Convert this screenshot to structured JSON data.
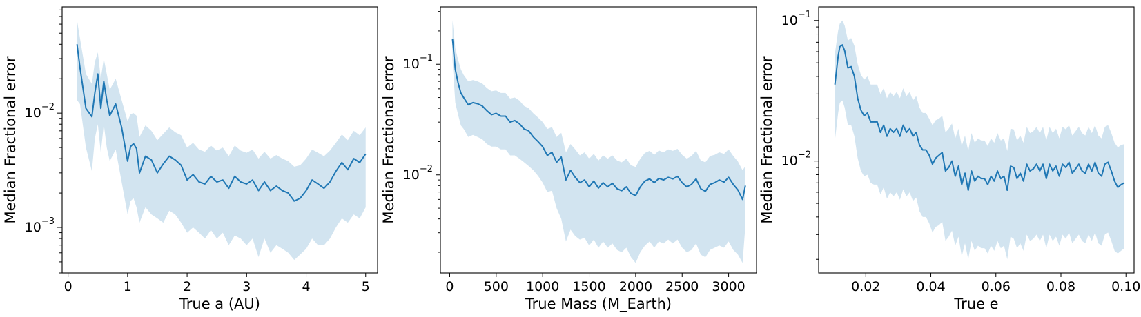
{
  "chart_data": [
    {
      "type": "line",
      "xlabel": "True a  (AU)",
      "ylabel": "Median Fractional error",
      "yscale": "log",
      "xlim": [
        -0.1,
        5.2
      ],
      "ylim": [
        0.0004,
        0.085
      ],
      "xticks": [
        0,
        1,
        2,
        3,
        4,
        5
      ],
      "xtick_labels": [
        "0",
        "1",
        "2",
        "3",
        "4",
        "5"
      ],
      "yticks": [
        0.001,
        0.01
      ],
      "ytick_labels": [
        "10^-3",
        "10^-2"
      ],
      "series": [
        {
          "x": [
            0.15,
            0.2,
            0.3,
            0.4,
            0.45,
            0.5,
            0.55,
            0.6,
            0.65,
            0.7,
            0.8,
            0.9,
            1.0,
            1.05,
            1.1,
            1.15,
            1.2,
            1.3,
            1.4,
            1.5,
            1.6,
            1.7,
            1.8,
            1.9,
            2.0,
            2.1,
            2.2,
            2.3,
            2.4,
            2.5,
            2.6,
            2.7,
            2.8,
            2.9,
            3.0,
            3.1,
            3.2,
            3.3,
            3.4,
            3.5,
            3.6,
            3.7,
            3.8,
            3.9,
            4.0,
            4.1,
            4.2,
            4.3,
            4.4,
            4.5,
            4.6,
            4.7,
            4.8,
            4.9,
            5.0
          ],
          "median": [
            0.04,
            0.025,
            0.011,
            0.0093,
            0.015,
            0.022,
            0.011,
            0.019,
            0.013,
            0.0095,
            0.012,
            0.0075,
            0.0038,
            0.0051,
            0.0054,
            0.0049,
            0.003,
            0.0042,
            0.0039,
            0.003,
            0.0036,
            0.0042,
            0.0039,
            0.0035,
            0.0026,
            0.0029,
            0.0025,
            0.0024,
            0.0028,
            0.0025,
            0.0026,
            0.0022,
            0.0028,
            0.0025,
            0.0024,
            0.0026,
            0.0021,
            0.0025,
            0.0021,
            0.0023,
            0.0021,
            0.002,
            0.0017,
            0.0018,
            0.0021,
            0.0026,
            0.0024,
            0.0022,
            0.0025,
            0.0031,
            0.0037,
            0.0032,
            0.004,
            0.0037,
            0.0044
          ],
          "lower": [
            0.013,
            0.012,
            0.005,
            0.0031,
            0.006,
            0.008,
            0.0045,
            0.008,
            0.005,
            0.0038,
            0.0048,
            0.0025,
            0.0013,
            0.0017,
            0.0018,
            0.0015,
            0.0011,
            0.0015,
            0.0013,
            0.0012,
            0.0011,
            0.0014,
            0.0013,
            0.0011,
            0.0009,
            0.001,
            0.0009,
            0.0008,
            0.00095,
            0.0008,
            0.0009,
            0.0007,
            0.00085,
            0.0008,
            0.0007,
            0.0008,
            0.00055,
            0.0008,
            0.0006,
            0.0007,
            0.00065,
            0.0006,
            0.00052,
            0.00058,
            0.00065,
            0.0008,
            0.0007,
            0.0007,
            0.0008,
            0.001,
            0.0012,
            0.0011,
            0.0013,
            0.0012,
            0.0015
          ],
          "upper": [
            0.065,
            0.045,
            0.022,
            0.018,
            0.028,
            0.034,
            0.02,
            0.03,
            0.022,
            0.016,
            0.02,
            0.013,
            0.0085,
            0.0098,
            0.01,
            0.0095,
            0.0062,
            0.0078,
            0.007,
            0.0058,
            0.0066,
            0.0075,
            0.0068,
            0.0064,
            0.005,
            0.0055,
            0.0048,
            0.0046,
            0.0052,
            0.0047,
            0.005,
            0.0042,
            0.0052,
            0.0047,
            0.0045,
            0.0048,
            0.004,
            0.0046,
            0.004,
            0.0043,
            0.004,
            0.0038,
            0.0034,
            0.0035,
            0.004,
            0.0048,
            0.0045,
            0.0042,
            0.0047,
            0.0055,
            0.0065,
            0.0058,
            0.007,
            0.0064,
            0.0075
          ]
        }
      ]
    },
    {
      "type": "line",
      "xlabel": "True Mass  (M_Earth)",
      "ylabel": "Median Fractional error",
      "yscale": "log",
      "xlim": [
        -100,
        3300
      ],
      "ylim": [
        0.0013,
        0.33
      ],
      "xticks": [
        0,
        500,
        1000,
        1500,
        2000,
        2500,
        3000
      ],
      "xtick_labels": [
        "0",
        "500",
        "1000",
        "1500",
        "2000",
        "2500",
        "3000"
      ],
      "yticks": [
        0.01,
        0.1
      ],
      "ytick_labels": [
        "10^-2",
        "10^-1"
      ],
      "series": [
        {
          "x": [
            30,
            60,
            90,
            120,
            150,
            200,
            250,
            300,
            350,
            400,
            450,
            500,
            550,
            600,
            650,
            700,
            750,
            800,
            850,
            900,
            950,
            1000,
            1050,
            1100,
            1150,
            1200,
            1250,
            1300,
            1350,
            1400,
            1450,
            1500,
            1550,
            1600,
            1650,
            1700,
            1750,
            1800,
            1850,
            1900,
            1950,
            2000,
            2050,
            2100,
            2150,
            2200,
            2250,
            2300,
            2350,
            2400,
            2450,
            2500,
            2550,
            2600,
            2650,
            2700,
            2750,
            2800,
            2850,
            2900,
            2950,
            3000,
            3050,
            3100,
            3150,
            3180
          ],
          "median": [
            0.17,
            0.09,
            0.068,
            0.055,
            0.05,
            0.043,
            0.045,
            0.044,
            0.042,
            0.038,
            0.035,
            0.036,
            0.034,
            0.034,
            0.03,
            0.031,
            0.029,
            0.026,
            0.025,
            0.022,
            0.02,
            0.018,
            0.015,
            0.016,
            0.013,
            0.0145,
            0.009,
            0.011,
            0.0095,
            0.0085,
            0.009,
            0.0078,
            0.0088,
            0.0076,
            0.0085,
            0.0078,
            0.0084,
            0.0075,
            0.0072,
            0.0078,
            0.0068,
            0.0065,
            0.0078,
            0.0088,
            0.0092,
            0.0085,
            0.0093,
            0.009,
            0.0095,
            0.0092,
            0.0097,
            0.0085,
            0.0078,
            0.0082,
            0.0092,
            0.0075,
            0.0071,
            0.0082,
            0.0085,
            0.009,
            0.0086,
            0.0095,
            0.0082,
            0.0073,
            0.006,
            0.008
          ],
          "lower": [
            0.11,
            0.045,
            0.035,
            0.028,
            0.026,
            0.022,
            0.023,
            0.022,
            0.021,
            0.019,
            0.018,
            0.018,
            0.017,
            0.017,
            0.015,
            0.015,
            0.014,
            0.013,
            0.012,
            0.011,
            0.0098,
            0.0085,
            0.007,
            0.0072,
            0.005,
            0.004,
            0.0025,
            0.0032,
            0.0028,
            0.0026,
            0.0027,
            0.0023,
            0.0026,
            0.0022,
            0.0025,
            0.0022,
            0.0024,
            0.0021,
            0.002,
            0.0022,
            0.0018,
            0.0016,
            0.002,
            0.0023,
            0.0025,
            0.0022,
            0.0025,
            0.0024,
            0.0026,
            0.0024,
            0.0026,
            0.0022,
            0.002,
            0.0021,
            0.0024,
            0.0019,
            0.0018,
            0.0021,
            0.0022,
            0.0023,
            0.0022,
            0.0025,
            0.0021,
            0.0019,
            0.0016,
            0.0035
          ],
          "upper": [
            0.25,
            0.14,
            0.11,
            0.09,
            0.08,
            0.07,
            0.072,
            0.07,
            0.067,
            0.061,
            0.057,
            0.058,
            0.055,
            0.055,
            0.049,
            0.05,
            0.047,
            0.042,
            0.04,
            0.036,
            0.033,
            0.03,
            0.026,
            0.027,
            0.022,
            0.024,
            0.016,
            0.019,
            0.017,
            0.015,
            0.016,
            0.014,
            0.0155,
            0.0135,
            0.015,
            0.014,
            0.015,
            0.0135,
            0.013,
            0.014,
            0.0122,
            0.0118,
            0.014,
            0.0158,
            0.0165,
            0.0152,
            0.0166,
            0.016,
            0.017,
            0.0165,
            0.0172,
            0.0152,
            0.014,
            0.0148,
            0.0165,
            0.0135,
            0.013,
            0.0148,
            0.0152,
            0.016,
            0.0155,
            0.017,
            0.0148,
            0.0132,
            0.011,
            0.012
          ]
        }
      ]
    },
    {
      "type": "line",
      "xlabel": "True e",
      "ylabel": "Median Fractional error",
      "yscale": "log",
      "xlim": [
        0.0055,
        0.1025
      ],
      "ylim": [
        0.0016,
        0.125
      ],
      "xticks": [
        0.02,
        0.04,
        0.06,
        0.08,
        0.1
      ],
      "xtick_labels": [
        "0.02",
        "0.04",
        "0.06",
        "0.08",
        "0.10"
      ],
      "yticks": [
        0.01,
        0.1
      ],
      "ytick_labels": [
        "10^-2",
        "10^-1"
      ],
      "series": [
        {
          "x": [
            0.0105,
            0.0115,
            0.012,
            0.0128,
            0.0135,
            0.0145,
            0.0155,
            0.0165,
            0.0175,
            0.0185,
            0.0195,
            0.0205,
            0.0215,
            0.0225,
            0.0235,
            0.0245,
            0.0255,
            0.0265,
            0.0275,
            0.0285,
            0.0295,
            0.0305,
            0.0315,
            0.0325,
            0.0335,
            0.0345,
            0.0355,
            0.0365,
            0.0375,
            0.0385,
            0.0395,
            0.0405,
            0.0415,
            0.0425,
            0.0435,
            0.0445,
            0.0455,
            0.0465,
            0.0475,
            0.0485,
            0.0495,
            0.0505,
            0.0515,
            0.0525,
            0.0535,
            0.0545,
            0.0555,
            0.0565,
            0.0575,
            0.0585,
            0.0595,
            0.0605,
            0.0615,
            0.0625,
            0.0635,
            0.0645,
            0.0655,
            0.0665,
            0.0675,
            0.0685,
            0.0695,
            0.0705,
            0.0715,
            0.0725,
            0.0735,
            0.0745,
            0.0755,
            0.0765,
            0.0775,
            0.0785,
            0.0795,
            0.0805,
            0.0815,
            0.0825,
            0.0835,
            0.0845,
            0.0855,
            0.0865,
            0.0875,
            0.0885,
            0.0895,
            0.0905,
            0.0915,
            0.0925,
            0.0935,
            0.0945,
            0.0955,
            0.0965,
            0.0975,
            0.0985,
            0.0995
          ],
          "median": [
            0.035,
            0.056,
            0.065,
            0.067,
            0.061,
            0.046,
            0.047,
            0.04,
            0.028,
            0.023,
            0.021,
            0.022,
            0.019,
            0.019,
            0.019,
            0.016,
            0.018,
            0.015,
            0.017,
            0.016,
            0.017,
            0.015,
            0.018,
            0.016,
            0.017,
            0.015,
            0.016,
            0.013,
            0.012,
            0.012,
            0.011,
            0.0095,
            0.0105,
            0.011,
            0.0115,
            0.0085,
            0.009,
            0.01,
            0.0078,
            0.0092,
            0.0068,
            0.0082,
            0.0062,
            0.0085,
            0.0072,
            0.0078,
            0.0075,
            0.0075,
            0.0068,
            0.0078,
            0.0072,
            0.0085,
            0.0075,
            0.0078,
            0.0062,
            0.0092,
            0.009,
            0.0075,
            0.0082,
            0.0072,
            0.0095,
            0.0085,
            0.0088,
            0.0095,
            0.0085,
            0.0095,
            0.0075,
            0.0095,
            0.0085,
            0.0092,
            0.0078,
            0.0095,
            0.009,
            0.0098,
            0.0082,
            0.0088,
            0.0095,
            0.0085,
            0.0082,
            0.0095,
            0.0085,
            0.0098,
            0.0082,
            0.0078,
            0.0095,
            0.0098,
            0.0085,
            0.0072,
            0.0065,
            0.0068,
            0.007
          ],
          "lower": [
            0.014,
            0.022,
            0.026,
            0.027,
            0.024,
            0.018,
            0.018,
            0.015,
            0.0105,
            0.0085,
            0.0078,
            0.008,
            0.007,
            0.0068,
            0.0068,
            0.0058,
            0.0065,
            0.0054,
            0.006,
            0.0056,
            0.006,
            0.0053,
            0.0063,
            0.0056,
            0.006,
            0.0052,
            0.0055,
            0.0044,
            0.004,
            0.004,
            0.0036,
            0.0031,
            0.0034,
            0.0035,
            0.0037,
            0.0027,
            0.0029,
            0.0032,
            0.0025,
            0.0029,
            0.0021,
            0.0026,
            0.002,
            0.0027,
            0.0023,
            0.0025,
            0.0024,
            0.0024,
            0.0022,
            0.0025,
            0.0023,
            0.0027,
            0.0024,
            0.0025,
            0.002,
            0.0029,
            0.0028,
            0.0024,
            0.0026,
            0.0023,
            0.003,
            0.0027,
            0.0028,
            0.003,
            0.0027,
            0.003,
            0.0024,
            0.003,
            0.0027,
            0.0029,
            0.0025,
            0.003,
            0.0028,
            0.0031,
            0.0026,
            0.0028,
            0.003,
            0.0027,
            0.0026,
            0.003,
            0.0027,
            0.0031,
            0.0026,
            0.0025,
            0.003,
            0.0031,
            0.0027,
            0.0023,
            0.0022,
            0.0023,
            0.0024
          ],
          "upper": [
            0.058,
            0.085,
            0.095,
            0.1,
            0.092,
            0.072,
            0.075,
            0.066,
            0.049,
            0.041,
            0.038,
            0.04,
            0.035,
            0.035,
            0.035,
            0.03,
            0.033,
            0.028,
            0.031,
            0.029,
            0.031,
            0.028,
            0.033,
            0.029,
            0.031,
            0.027,
            0.029,
            0.024,
            0.022,
            0.022,
            0.02,
            0.018,
            0.0195,
            0.02,
            0.021,
            0.016,
            0.017,
            0.0185,
            0.0145,
            0.017,
            0.0128,
            0.0152,
            0.0118,
            0.0158,
            0.0135,
            0.0145,
            0.014,
            0.014,
            0.0128,
            0.0145,
            0.0135,
            0.0158,
            0.014,
            0.0145,
            0.0118,
            0.017,
            0.0168,
            0.014,
            0.0152,
            0.0135,
            0.0175,
            0.0158,
            0.0163,
            0.0175,
            0.0158,
            0.0175,
            0.014,
            0.0175,
            0.0158,
            0.017,
            0.0145,
            0.0175,
            0.0168,
            0.018,
            0.0152,
            0.0163,
            0.0175,
            0.0158,
            0.0152,
            0.0175,
            0.0158,
            0.018,
            0.0152,
            0.0145,
            0.0175,
            0.018,
            0.0158,
            0.0135,
            0.0125,
            0.013,
            0.0132
          ]
        }
      ]
    }
  ]
}
